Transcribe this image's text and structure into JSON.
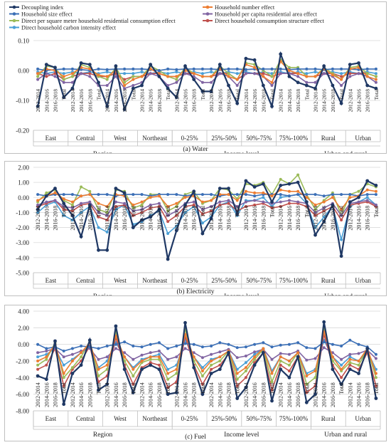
{
  "legend": [
    {
      "name": "Decoupling index",
      "color": "#1f3864"
    },
    {
      "name": "Household number effect",
      "color": "#ed7d31"
    },
    {
      "name": "Household size effect",
      "color": "#3b6fb6"
    },
    {
      "name": "Household per capita residential area effect",
      "color": "#8064a2"
    },
    {
      "name": "Direct per square meter household residential consumption effect",
      "color": "#9bbb59"
    },
    {
      "name": "Direct household consumption structure effect",
      "color": "#c0504d"
    },
    {
      "name": "Direct household carbon intensity effect",
      "color": "#4a9fd6"
    }
  ],
  "x_structure": {
    "periods": [
      "2012-2014",
      "2014-2016",
      "2016-2018",
      "Total"
    ],
    "groups": [
      {
        "name": "Region",
        "subgroups": [
          "East",
          "Central",
          "West",
          "Northeast"
        ]
      },
      {
        "name": "Income level",
        "subgroups": [
          "0-25%",
          "25%-50%",
          "50%-75%",
          "75%-100%"
        ]
      },
      {
        "name": "Urban and rural",
        "subgroups": [
          "Rural",
          "Urban"
        ]
      }
    ]
  },
  "chart_data": [
    {
      "type": "line",
      "title": "(a) Water",
      "ylim": [
        -0.2,
        0.1
      ],
      "yticks": [
        "0.10",
        "0.00",
        "-0.10",
        "-0.20"
      ],
      "ytick_values": [
        0.1,
        0.0,
        -0.1,
        -0.2
      ],
      "x_label_y": -0.062,
      "series": [
        {
          "values": [
            -0.12,
            0.02,
            0.01,
            -0.09,
            -0.06,
            0.025,
            0.02,
            -0.04,
            -0.12,
            0.015,
            -0.13,
            -0.06,
            -0.05,
            0.02,
            -0.02,
            -0.06,
            -0.09,
            0.015,
            -0.03,
            -0.07,
            -0.07,
            0.02,
            -0.05,
            -0.11,
            0.04,
            0.035,
            -0.05,
            -0.12,
            0.055,
            -0.02,
            -0.04,
            -0.05,
            -0.06,
            0.015,
            -0.05,
            -0.11,
            0.02,
            0.025,
            -0.05,
            -0.06
          ]
        },
        {
          "values": [
            -0.01,
            0.005,
            0.0,
            -0.02,
            -0.01,
            0.01,
            0.005,
            -0.015,
            -0.02,
            0.0,
            -0.05,
            -0.03,
            -0.02,
            0.005,
            -0.01,
            -0.02,
            -0.02,
            0.0,
            -0.01,
            -0.02,
            -0.02,
            0.005,
            -0.02,
            -0.03,
            0.02,
            0.01,
            -0.02,
            -0.04,
            0.03,
            0.0,
            -0.01,
            -0.02,
            -0.02,
            0.005,
            -0.015,
            -0.03,
            0.005,
            0.01,
            -0.02,
            -0.03
          ]
        },
        {
          "values": [
            0.005,
            0.0,
            0.003,
            0.005,
            0.005,
            0.003,
            0.0,
            0.005,
            0.003,
            0.005,
            0.005,
            0.005,
            0.005,
            0.003,
            0.0,
            0.005,
            0.003,
            0.005,
            0.005,
            0.005,
            0.005,
            0.003,
            0.005,
            0.005,
            0.003,
            0.005,
            0.005,
            0.005,
            0.005,
            0.003,
            0.005,
            0.005,
            0.005,
            0.003,
            0.005,
            0.005,
            0.005,
            0.003,
            0.005,
            0.005
          ]
        },
        {
          "values": [
            -0.03,
            -0.01,
            -0.02,
            -0.04,
            -0.04,
            -0.01,
            -0.02,
            -0.05,
            -0.05,
            -0.02,
            -0.06,
            -0.05,
            -0.04,
            -0.01,
            -0.02,
            -0.05,
            -0.04,
            -0.01,
            -0.02,
            -0.04,
            -0.04,
            -0.01,
            -0.02,
            -0.05,
            -0.01,
            -0.01,
            -0.02,
            -0.05,
            -0.01,
            -0.01,
            -0.02,
            -0.04,
            -0.04,
            -0.01,
            -0.02,
            -0.05,
            -0.02,
            -0.01,
            -0.02,
            -0.04
          ]
        },
        {
          "values": [
            -0.02,
            0.015,
            0.01,
            -0.03,
            -0.02,
            0.02,
            0.01,
            -0.02,
            -0.03,
            0.01,
            -0.04,
            -0.02,
            -0.02,
            0.015,
            0.0,
            -0.02,
            -0.03,
            0.01,
            -0.01,
            -0.02,
            -0.02,
            0.015,
            -0.01,
            -0.03,
            0.025,
            0.02,
            0.0,
            -0.02,
            0.035,
            0.01,
            0.01,
            -0.02,
            -0.02,
            0.01,
            -0.01,
            -0.03,
            0.01,
            0.015,
            -0.01,
            -0.02
          ]
        },
        {
          "values": [
            -0.01,
            -0.02,
            -0.01,
            -0.03,
            -0.02,
            -0.01,
            -0.01,
            -0.02,
            -0.02,
            -0.01,
            -0.03,
            -0.02,
            -0.02,
            -0.01,
            -0.01,
            -0.02,
            -0.02,
            -0.01,
            -0.01,
            -0.02,
            -0.02,
            -0.01,
            -0.01,
            -0.03,
            -0.01,
            -0.01,
            -0.01,
            -0.02,
            -0.01,
            -0.01,
            -0.01,
            -0.02,
            -0.02,
            -0.01,
            -0.01,
            -0.02,
            -0.01,
            -0.01,
            -0.01,
            -0.02
          ]
        },
        {
          "values": [
            -0.005,
            -0.01,
            -0.005,
            -0.01,
            -0.005,
            -0.01,
            -0.005,
            -0.01,
            -0.005,
            -0.01,
            -0.01,
            -0.01,
            -0.005,
            -0.01,
            -0.005,
            -0.01,
            -0.005,
            -0.01,
            -0.005,
            -0.01,
            -0.005,
            -0.01,
            -0.005,
            -0.01,
            -0.005,
            -0.01,
            -0.005,
            -0.01,
            -0.005,
            -0.01,
            -0.005,
            -0.01,
            -0.005,
            -0.01,
            -0.005,
            -0.01,
            -0.005,
            -0.01,
            -0.005,
            -0.01
          ]
        }
      ]
    },
    {
      "type": "line",
      "title": "(b) Electricity",
      "ylim": [
        -5.0,
        2.0
      ],
      "yticks": [
        "2.00",
        "1.00",
        "0.00",
        "-1.00",
        "-2.00",
        "-3.00",
        "-4.00",
        "-5.00"
      ],
      "ytick_values": [
        2,
        1,
        0,
        -1,
        -2,
        -3,
        -4,
        -5
      ],
      "x_label_y": -0.55,
      "series": [
        {
          "values": [
            -0.8,
            0.1,
            0.6,
            -0.4,
            -1.2,
            -2.6,
            -0.5,
            -3.5,
            -3.5,
            0.6,
            0.3,
            -2.0,
            -1.5,
            -1.3,
            -0.8,
            -4.1,
            -2.2,
            -0.5,
            0.4,
            -2.4,
            -1.4,
            0.6,
            0.6,
            -1.1,
            1.1,
            0.7,
            0.9,
            -0.3,
            0.8,
            0.9,
            1.0,
            -0.3,
            -2.5,
            -1.6,
            -0.5,
            -3.9,
            -0.3,
            0.0,
            1.1,
            0.8
          ]
        },
        {
          "values": [
            -0.2,
            0.1,
            0.3,
            -0.1,
            -0.3,
            0.1,
            0.2,
            -0.4,
            -0.6,
            0.2,
            0.1,
            -0.5,
            -0.3,
            0.0,
            0.1,
            -0.6,
            -0.4,
            0.0,
            0.1,
            -0.3,
            -0.2,
            0.2,
            0.2,
            -0.2,
            0.4,
            0.3,
            0.3,
            0.1,
            0.5,
            0.4,
            0.4,
            0.0,
            -0.5,
            -0.3,
            0.0,
            -0.8,
            0.0,
            0.1,
            0.5,
            0.4
          ]
        },
        {
          "values": [
            0.2,
            0.1,
            0.2,
            0.2,
            0.2,
            0.1,
            0.2,
            0.2,
            0.2,
            0.1,
            0.2,
            0.2,
            0.2,
            0.1,
            0.2,
            0.2,
            0.2,
            0.1,
            0.2,
            0.2,
            0.2,
            0.1,
            0.2,
            0.2,
            0.2,
            0.1,
            0.2,
            0.2,
            0.2,
            0.1,
            0.2,
            0.2,
            0.2,
            0.1,
            0.2,
            0.2,
            0.2,
            0.1,
            0.2,
            0.2
          ]
        },
        {
          "values": [
            -0.5,
            -0.3,
            -0.2,
            -0.6,
            -0.7,
            -0.4,
            -0.3,
            -1.0,
            -1.2,
            -0.3,
            -0.4,
            -0.9,
            -0.8,
            -0.5,
            -0.4,
            -1.2,
            -0.9,
            -0.4,
            -0.3,
            -0.8,
            -0.6,
            -0.3,
            -0.2,
            -0.6,
            -0.3,
            -0.2,
            -0.3,
            -0.4,
            -0.3,
            -0.2,
            -0.3,
            -0.4,
            -1.0,
            -0.7,
            -0.4,
            -1.2,
            -0.4,
            -0.3,
            -0.2,
            -0.5
          ]
        },
        {
          "values": [
            -0.3,
            0.3,
            0.5,
            -0.2,
            -0.5,
            0.7,
            0.4,
            -0.8,
            -1.0,
            0.5,
            0.4,
            -0.7,
            -0.5,
            0.2,
            0.2,
            -0.9,
            -0.6,
            0.2,
            0.4,
            -0.4,
            -0.2,
            0.6,
            0.5,
            -0.1,
            0.9,
            0.8,
            1.0,
            0.2,
            1.2,
            0.9,
            1.5,
            0.2,
            -0.8,
            -0.2,
            0.3,
            -1.2,
            0.2,
            0.4,
            0.9,
            0.7
          ]
        },
        {
          "values": [
            -0.6,
            -0.4,
            -0.2,
            -0.8,
            -0.9,
            -0.5,
            -0.4,
            -1.3,
            -1.5,
            -0.6,
            -0.5,
            -1.2,
            -1.0,
            -0.7,
            -0.6,
            -1.6,
            -1.2,
            -0.6,
            -0.5,
            -1.1,
            -0.9,
            -0.5,
            -0.4,
            -0.9,
            -0.6,
            -0.5,
            -0.4,
            -0.7,
            -0.6,
            -0.4,
            -0.4,
            -0.6,
            -1.2,
            -0.9,
            -0.6,
            -1.5,
            -0.5,
            -0.4,
            -0.3,
            -0.6
          ]
        },
        {
          "values": [
            -1.0,
            -0.5,
            -0.3,
            -1.2,
            -1.5,
            -1.0,
            -0.6,
            -2.0,
            -2.3,
            -0.8,
            -0.5,
            -1.8,
            -1.6,
            -1.2,
            -0.9,
            -2.4,
            -1.9,
            -1.0,
            -0.6,
            -1.7,
            -1.3,
            -0.5,
            -0.3,
            -1.2,
            -0.2,
            -0.2,
            0.0,
            -0.6,
            0.0,
            0.1,
            0.2,
            -0.4,
            -2.0,
            -1.3,
            -0.6,
            -2.8,
            -0.6,
            -0.3,
            0.0,
            -0.5
          ]
        }
      ]
    },
    {
      "type": "line",
      "title": "(c) Fuel",
      "ylim": [
        -8.0,
        4.0
      ],
      "yticks": [
        "4.00",
        "2.00",
        "0.00",
        "-2.00",
        "-4.00",
        "-6.00",
        "-8.00"
      ],
      "ytick_values": [
        4,
        2,
        0,
        -2,
        -4,
        -6,
        -8
      ],
      "x_label_y": -4.6,
      "series": [
        {
          "values": [
            -3.8,
            -4.2,
            0.4,
            -7.2,
            -3.5,
            -2.5,
            0.5,
            -5.5,
            -4.8,
            2.2,
            -3.0,
            -5.8,
            -3.0,
            -2.5,
            -3.0,
            -6.0,
            -5.8,
            2.6,
            -2.8,
            -6.0,
            -3.5,
            -3.0,
            -1.0,
            -6.5,
            -5.2,
            -2.5,
            -1.0,
            -6.8,
            -3.0,
            -4.0,
            -1.5,
            -7.0,
            -6.0,
            2.7,
            -3.0,
            -4.8,
            -3.0,
            -3.5,
            -0.5,
            -6.5
          ]
        },
        {
          "values": [
            -2.0,
            -1.5,
            0.0,
            -3.5,
            -2.0,
            -1.0,
            0.2,
            -3.0,
            -2.5,
            1.0,
            -1.5,
            -3.0,
            -2.0,
            -1.5,
            -1.5,
            -3.5,
            -3.0,
            1.2,
            -1.5,
            -3.2,
            -2.0,
            -1.5,
            -0.8,
            -3.5,
            -2.8,
            -1.5,
            -0.5,
            -3.5,
            -1.5,
            -2.0,
            -1.0,
            -3.8,
            -3.2,
            1.5,
            -1.5,
            -3.0,
            -1.8,
            -2.0,
            -0.5,
            -3.5
          ]
        },
        {
          "values": [
            0.0,
            -0.5,
            -0.3,
            -0.8,
            -0.5,
            -0.2,
            -0.3,
            -0.5,
            -0.2,
            0.0,
            0.3,
            -0.2,
            -0.3,
            0.0,
            0.2,
            -0.5,
            -0.2,
            0.1,
            0.0,
            -0.3,
            -0.2,
            0.2,
            0.0,
            -0.4,
            -0.3,
            0.0,
            0.2,
            -0.3,
            -0.1,
            0.0,
            0.2,
            -0.4,
            -0.5,
            0.3,
            0.0,
            -0.2,
            0.5,
            0.0,
            -0.3,
            -1.2
          ]
        },
        {
          "values": [
            -1.0,
            -0.8,
            -0.5,
            -1.5,
            -1.2,
            -0.8,
            -0.5,
            -1.8,
            -1.5,
            -0.5,
            -1.0,
            -1.8,
            -1.3,
            -1.0,
            -0.8,
            -1.8,
            -1.5,
            -0.5,
            -1.0,
            -1.6,
            -1.2,
            -0.9,
            -0.6,
            -1.6,
            -1.4,
            -0.9,
            -0.6,
            -1.8,
            -1.1,
            -1.2,
            -0.8,
            -1.9,
            -1.7,
            -0.4,
            -1.0,
            -1.8,
            -1.2,
            -1.1,
            -0.7,
            -1.7
          ]
        },
        {
          "values": [
            -2.5,
            -1.8,
            0.2,
            -4.0,
            -2.8,
            -1.5,
            0.4,
            -3.8,
            -3.0,
            1.5,
            -2.0,
            -3.8,
            -2.2,
            -1.8,
            -1.8,
            -4.2,
            -3.5,
            1.8,
            -2.0,
            -3.8,
            -2.5,
            -2.0,
            -0.8,
            -4.2,
            -3.2,
            -1.8,
            -0.6,
            -4.5,
            -2.0,
            -2.5,
            -1.0,
            -4.8,
            -4.0,
            2.0,
            -2.0,
            -3.2,
            -2.2,
            -2.5,
            -0.6,
            -4.0
          ]
        },
        {
          "values": [
            -3.0,
            -2.5,
            -0.5,
            -5.0,
            -3.0,
            -2.0,
            -0.2,
            -4.5,
            -3.8,
            0.8,
            -2.5,
            -4.8,
            -2.8,
            -2.2,
            -2.5,
            -5.2,
            -4.5,
            1.0,
            -2.5,
            -4.8,
            -3.0,
            -2.5,
            -1.2,
            -5.0,
            -4.0,
            -2.2,
            -1.0,
            -5.5,
            -2.5,
            -3.2,
            -1.5,
            -5.8,
            -5.0,
            1.2,
            -2.5,
            -4.0,
            -2.5,
            -3.0,
            -1.0,
            -5.0
          ]
        },
        {
          "values": [
            -1.5,
            -1.2,
            -0.5,
            -2.5,
            -1.8,
            -1.0,
            -0.2,
            -2.8,
            -2.0,
            0.2,
            -1.5,
            -2.8,
            -1.8,
            -1.5,
            -1.2,
            -3.0,
            -2.5,
            0.5,
            -1.5,
            -2.8,
            -1.8,
            -1.5,
            -0.8,
            -3.0,
            -2.2,
            -1.2,
            -0.5,
            -3.2,
            -1.5,
            -2.0,
            -1.0,
            -3.5,
            -3.0,
            0.5,
            -1.5,
            -2.5,
            -1.5,
            -2.0,
            -0.8,
            -3.0
          ]
        }
      ]
    }
  ]
}
